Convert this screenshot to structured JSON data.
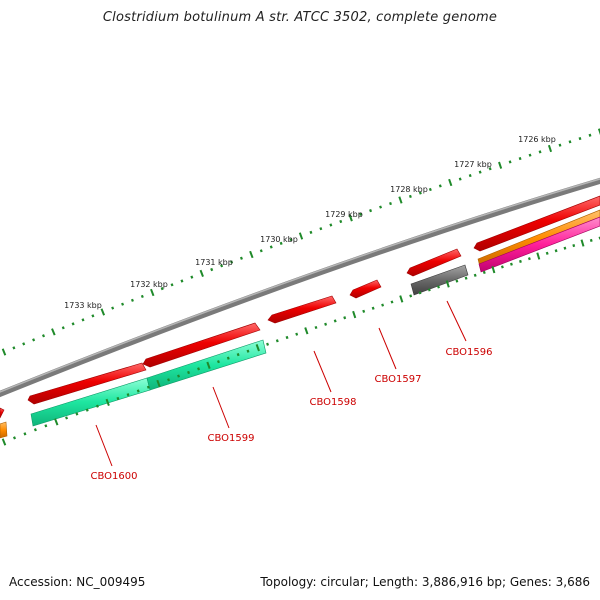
{
  "title": "Clostridium botulinum A str. ATCC 3502, complete genome",
  "footer": {
    "accession": "Accession: NC_009495",
    "summary": "Topology: circular; Length: 3,886,916 bp; Genes: 3,686"
  },
  "colors": {
    "backbone": "#808080",
    "tick": "#1f8a2a",
    "gene": "#ee0000",
    "gene_light": "#ff5a5a",
    "pseudo_gene": "#606060",
    "cds_feature": "#1ee6a0",
    "orange_feature": "#ff8c00",
    "pink_feature": "#ff1f9a",
    "gene_label": "#cc0000"
  },
  "scale": {
    "unit": "kbp",
    "labels": [
      "1726 kbp",
      "1727 kbp",
      "1728 kbp",
      "1729 kbp",
      "1730 kbp",
      "1731 kbp",
      "1732 kbp",
      "1733 kbp"
    ]
  },
  "genes": [
    {
      "id": "CBO1596",
      "label": "CBO1596"
    },
    {
      "id": "CBO1597",
      "label": "CBO1597"
    },
    {
      "id": "CBO1598",
      "label": "CBO1598"
    },
    {
      "id": "CBO1599",
      "label": "CBO1599"
    },
    {
      "id": "CBO1600",
      "label": "CBO1600"
    }
  ]
}
